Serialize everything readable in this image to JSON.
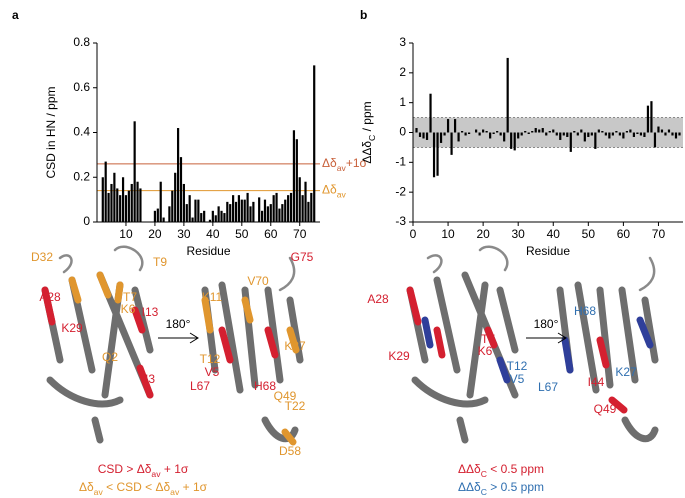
{
  "panel_labels": [
    "a",
    "b"
  ],
  "chart_data": [
    {
      "type": "bar",
      "xlabel": "Residue",
      "ylabel": "CSD in HN / ppm",
      "color": "#000000",
      "x": [
        1,
        2,
        3,
        4,
        5,
        6,
        7,
        8,
        9,
        10,
        11,
        12,
        13,
        14,
        15,
        16,
        17,
        18,
        19,
        20,
        21,
        22,
        23,
        24,
        25,
        26,
        27,
        28,
        29,
        30,
        31,
        32,
        33,
        34,
        35,
        36,
        37,
        38,
        39,
        40,
        41,
        42,
        43,
        44,
        45,
        46,
        47,
        48,
        49,
        50,
        51,
        52,
        53,
        54,
        55,
        56,
        57,
        58,
        59,
        60,
        61,
        62,
        63,
        64,
        65,
        66,
        67,
        68,
        69,
        70,
        71,
        72,
        73,
        74,
        75,
        76
      ],
      "values": [
        0,
        0.2,
        0.27,
        0.13,
        0.17,
        0.22,
        0.15,
        0.12,
        0.2,
        0.12,
        0.14,
        0.17,
        0.45,
        0.18,
        0.15,
        0,
        0,
        0,
        0,
        0.05,
        0.06,
        0.18,
        0.02,
        0,
        0.07,
        0.14,
        0.22,
        0.42,
        0.29,
        0.17,
        0.08,
        0.12,
        0.02,
        0.1,
        0.1,
        0.04,
        0.05,
        0,
        0.01,
        0.05,
        0.03,
        0.07,
        0.05,
        0.04,
        0.09,
        0.08,
        0.12,
        0.09,
        0.12,
        0.1,
        0.1,
        0.13,
        0.07,
        0.09,
        0,
        0.11,
        0.05,
        0.1,
        0.07,
        0.08,
        0.12,
        0.13,
        0.06,
        0.08,
        0.1,
        0.12,
        0.13,
        0.41,
        0.37,
        0.2,
        0.12,
        0.18,
        0.09,
        0.13,
        0.7,
        0
      ],
      "xlim": [
        0,
        77
      ],
      "xticks": [
        10,
        20,
        30,
        40,
        50,
        60,
        70
      ],
      "ylim": [
        0,
        0.8
      ],
      "yticks": [
        0,
        0.2,
        0.4,
        0.6,
        0.8
      ],
      "thresholds": [
        {
          "value": 0.26,
          "color": "#c8603a",
          "label": [
            "Δδ",
            "av",
            "+1σ"
          ]
        },
        {
          "value": 0.14,
          "color": "#e0962e",
          "label": [
            "Δδ",
            "av"
          ]
        }
      ]
    },
    {
      "type": "bar",
      "xlabel": "Residue",
      "ylabel": [
        "ΔΔδ",
        "C",
        " / ppm"
      ],
      "color": "#000000",
      "x": [
        1,
        2,
        3,
        4,
        5,
        6,
        7,
        8,
        9,
        10,
        11,
        12,
        13,
        14,
        15,
        16,
        17,
        18,
        19,
        20,
        21,
        22,
        23,
        24,
        25,
        26,
        27,
        28,
        29,
        30,
        31,
        32,
        33,
        34,
        35,
        36,
        37,
        38,
        39,
        40,
        41,
        42,
        43,
        44,
        45,
        46,
        47,
        48,
        49,
        50,
        51,
        52,
        53,
        54,
        55,
        56,
        57,
        58,
        59,
        60,
        61,
        62,
        63,
        64,
        65,
        66,
        67,
        68,
        69,
        70,
        71,
        72,
        73,
        74,
        75,
        76
      ],
      "values": [
        0.15,
        -0.15,
        -0.2,
        -0.25,
        1.3,
        -1.5,
        -1.45,
        -0.35,
        -0.1,
        0.45,
        -0.75,
        0.45,
        -0.3,
        0.05,
        -0.1,
        -0.05,
        0,
        0.1,
        -0.1,
        0.1,
        0.05,
        -0.2,
        -0.05,
        0.05,
        -0.1,
        -0.3,
        2.5,
        -0.55,
        -0.6,
        -0.2,
        -0.1,
        0.05,
        -0.05,
        0.05,
        0.15,
        0.1,
        0.15,
        -0.1,
        0.05,
        0.1,
        -0.1,
        -0.25,
        -0.1,
        -0.15,
        -0.65,
        0.05,
        -0.1,
        0.1,
        -0.3,
        -0.15,
        -0.1,
        -0.55,
        0.1,
        0.05,
        -0.1,
        -0.2,
        -0.1,
        0.05,
        -0.1,
        -0.2,
        0.05,
        0.1,
        -0.15,
        -0.05,
        -0.1,
        -0.15,
        0.9,
        1.05,
        -0.5,
        0.2,
        0.1,
        -0.1,
        0.1,
        -0.1,
        -0.2,
        -0.1
      ],
      "xlim": [
        0,
        77
      ],
      "xticks": [
        0,
        10,
        20,
        30,
        40,
        50,
        60,
        70
      ],
      "ylim": [
        -3,
        3
      ],
      "yticks": [
        -3,
        -2,
        -1,
        0,
        1,
        2,
        3
      ],
      "band": [
        -0.5,
        0.5
      ],
      "band_color": "#c8c8c8"
    }
  ],
  "structures": [
    {
      "rotation": "180°",
      "labels": [
        {
          "text": "D32",
          "color": "#e0962e"
        },
        {
          "text": "T9",
          "color": "#e0962e"
        },
        {
          "text": "T7",
          "color": "#e0962e"
        },
        {
          "text": "K6",
          "color": "#e0962e"
        },
        {
          "text": "A28",
          "color": "#d42030"
        },
        {
          "text": "I13",
          "color": "#d42030"
        },
        {
          "text": "K29",
          "color": "#d42030"
        },
        {
          "text": "Q2",
          "color": "#e0962e"
        },
        {
          "text": "I3",
          "color": "#d42030"
        },
        {
          "text": "G75",
          "color": "#d42030"
        },
        {
          "text": "V70",
          "color": "#e0962e"
        },
        {
          "text": "K11",
          "color": "#e0962e"
        },
        {
          "text": "T12",
          "color": "#e0962e"
        },
        {
          "text": "V5",
          "color": "#d42030"
        },
        {
          "text": "L67",
          "color": "#d42030"
        },
        {
          "text": "H68",
          "color": "#d42030"
        },
        {
          "text": "K27",
          "color": "#e0962e"
        },
        {
          "text": "Q49",
          "color": "#e0962e"
        },
        {
          "text": "T22",
          "color": "#e0962e"
        },
        {
          "text": "D58",
          "color": "#e0962e"
        }
      ],
      "legend": [
        {
          "parts": [
            "CSD > Δδ",
            "av",
            " + 1σ"
          ],
          "color": "#d42030"
        },
        {
          "parts": [
            "Δδ",
            "av",
            " < CSD < Δδ",
            "av",
            " + 1σ"
          ],
          "color": "#e0962e"
        }
      ]
    },
    {
      "rotation": "180°",
      "labels": [
        {
          "text": "A28",
          "color": "#d42030"
        },
        {
          "text": "T7",
          "color": "#d42030"
        },
        {
          "text": "K6",
          "color": "#d42030"
        },
        {
          "text": "T12",
          "color": "#2f6fb0"
        },
        {
          "text": "V5",
          "color": "#2f6fb0"
        },
        {
          "text": "K29",
          "color": "#d42030"
        },
        {
          "text": "H68",
          "color": "#2f6fb0"
        },
        {
          "text": "K27",
          "color": "#2f6fb0"
        },
        {
          "text": "I44",
          "color": "#d42030"
        },
        {
          "text": "L67",
          "color": "#2f6fb0"
        },
        {
          "text": "Q49",
          "color": "#d42030"
        }
      ],
      "legend": [
        {
          "parts": [
            "ΔΔδ",
            "C",
            " < 0.5 ppm"
          ],
          "color": "#d42030"
        },
        {
          "parts": [
            "ΔΔδ",
            "C",
            " > 0.5 ppm"
          ],
          "color": "#2f6fb0"
        }
      ]
    }
  ]
}
